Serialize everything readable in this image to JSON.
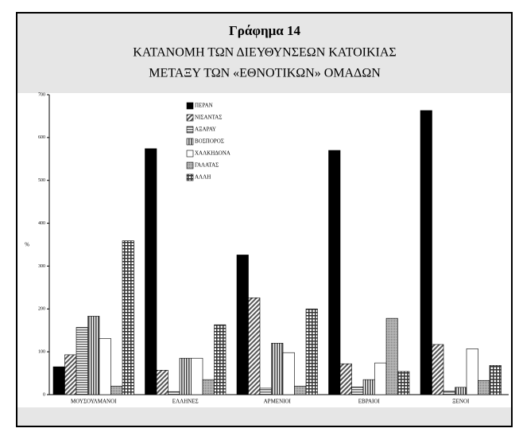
{
  "chart_data": {
    "type": "bar",
    "title": "Γράφημα 14",
    "subtitle": [
      "ΚΑΤΑΝΟΜΗ ΤΩΝ ΔΙΕΥΘΥΝΣΕΩΝ ΚΑΤΟΙΚΙΑΣ",
      "ΜΕΤΑΞΥ ΤΩΝ «ΕΘΝΟΤΙΚΩΝ» ΟΜΑΔΩΝ"
    ],
    "y_label": "%",
    "categories": [
      "ΜΟΥΣΟΥΛΜΑΝΟΙ",
      "ΕΛΛΗΝΕΣ",
      "ΑΡΜΕΝΙΟΙ",
      "ΕΒΡΑΙΟΙ",
      "ΞΕΝΟΙ"
    ],
    "series": [
      {
        "name": "ΠΕΡΑΝ",
        "color": "#000000",
        "values": [
          65,
          574,
          326,
          570,
          663
        ]
      },
      {
        "name": "ΝΙΣΑΝΤΑΣ",
        "color": "#555555",
        "values": [
          93,
          57,
          226,
          72,
          117
        ]
      },
      {
        "name": "ΑΞΑΡΑΥ",
        "color": "#666666",
        "values": [
          157,
          7,
          15,
          18,
          8
        ]
      },
      {
        "name": "ΒΟΣΠΟΡΟΣ",
        "color": "#444444",
        "values": [
          183,
          85,
          120,
          35,
          17
        ]
      },
      {
        "name": "ΧΑΛΚΗΔΟΝΑ",
        "color": "#ffffff",
        "values": [
          131,
          85,
          98,
          74,
          107
        ]
      },
      {
        "name": "ΓΑΛΑΤΑΣ",
        "color": "#888888",
        "values": [
          20,
          35,
          20,
          178,
          33
        ]
      },
      {
        "name": "ΑΛΛΗ",
        "color": "#333333",
        "values": [
          359,
          163,
          200,
          54,
          68
        ]
      }
    ],
    "ylim": [
      0,
      700
    ],
    "yticks": [
      0,
      100,
      200,
      300,
      400,
      500,
      600,
      700
    ]
  }
}
